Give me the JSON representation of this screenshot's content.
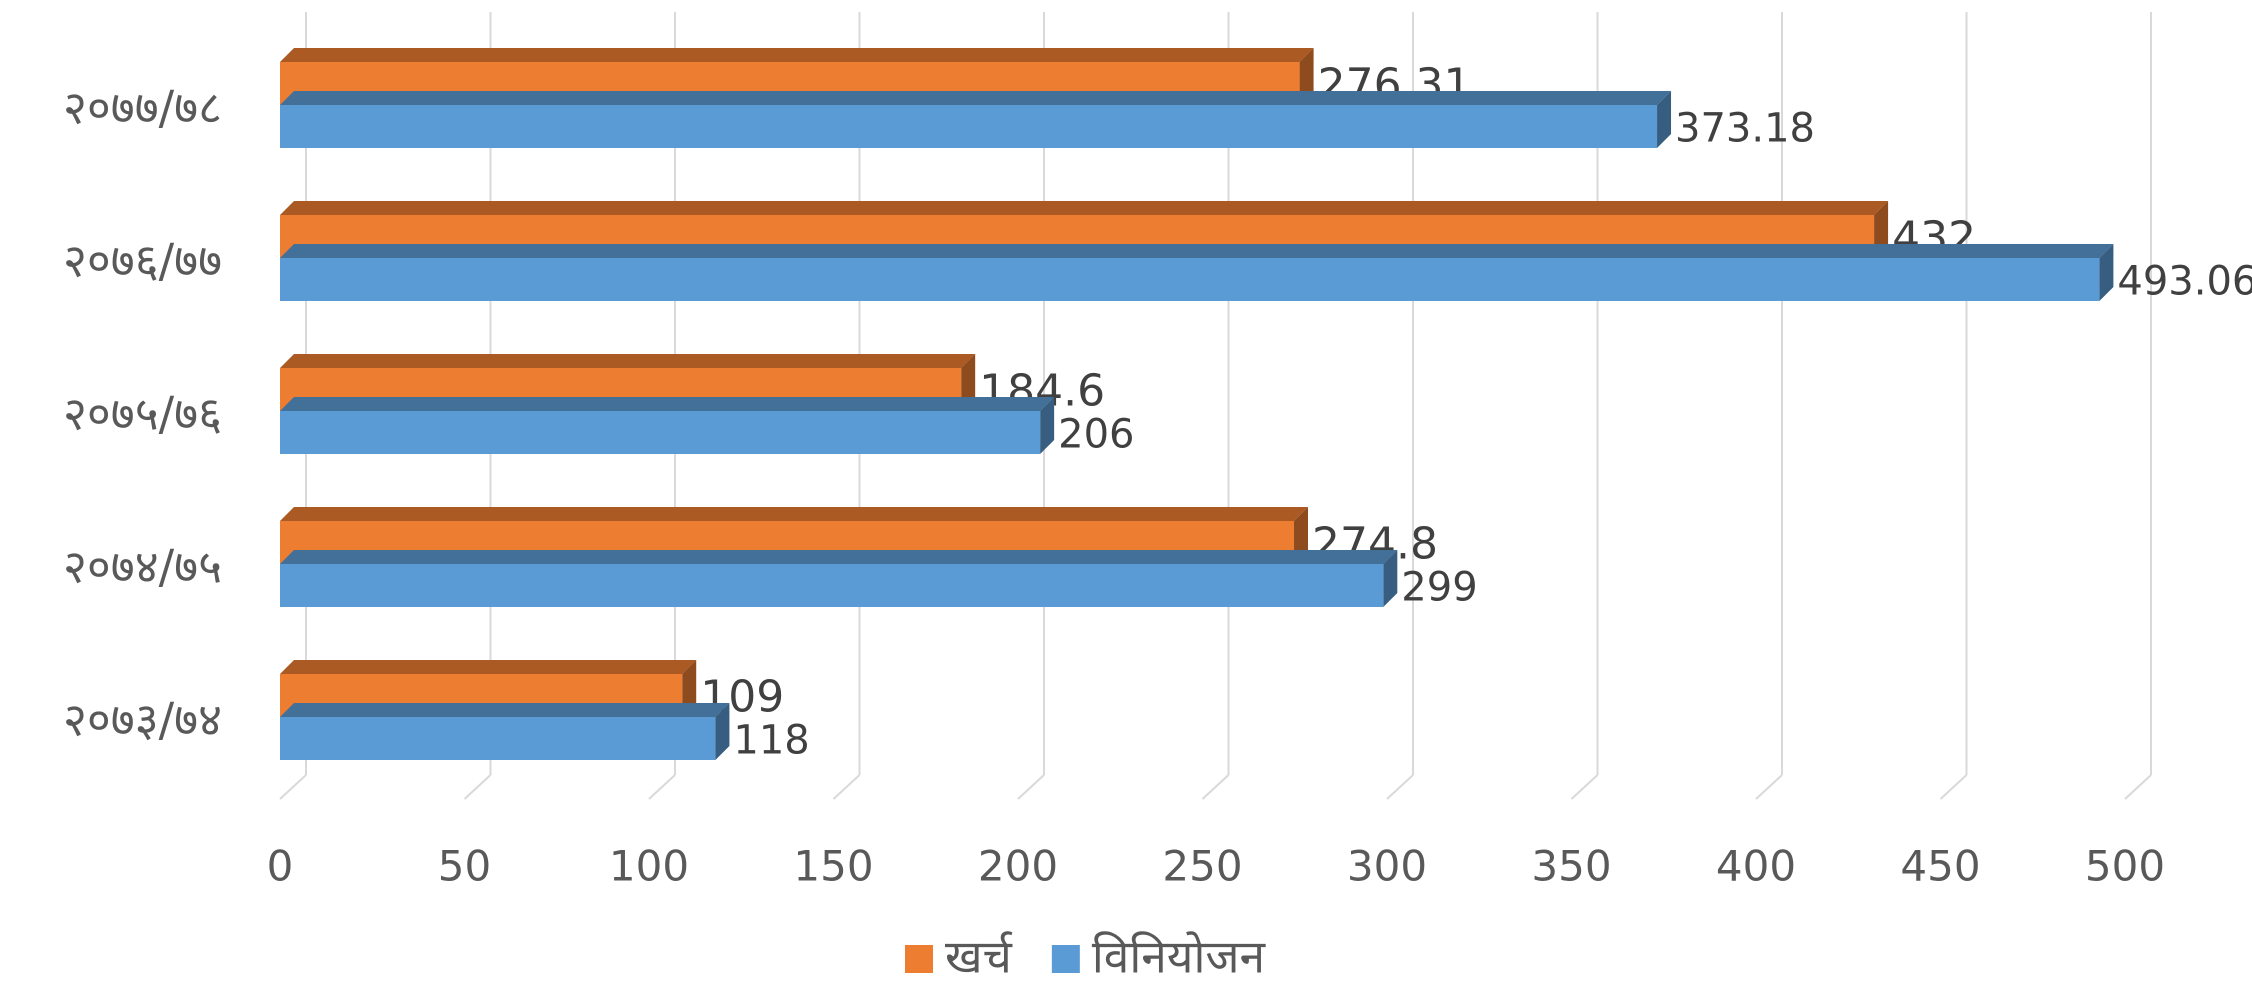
{
  "chart_data": {
    "type": "bar",
    "orientation": "horizontal",
    "categories": [
      "२०७७/७८",
      "२०७६/७७",
      "२०७५/७६",
      "२०७४/७५",
      "२०७३/७४"
    ],
    "series": [
      {
        "name": "खर्च",
        "color": "#ED7D31",
        "values": [
          276.31,
          432,
          184.6,
          274.8,
          109
        ]
      },
      {
        "name": "विनियोजन",
        "color": "#5B9BD5",
        "values": [
          373.18,
          493.06,
          206,
          299,
          118
        ]
      }
    ],
    "xlim": [
      0,
      500
    ],
    "xticks": [
      0,
      50,
      100,
      150,
      200,
      250,
      300,
      350,
      400,
      450,
      500
    ],
    "grid": true,
    "legend": "bottom"
  }
}
